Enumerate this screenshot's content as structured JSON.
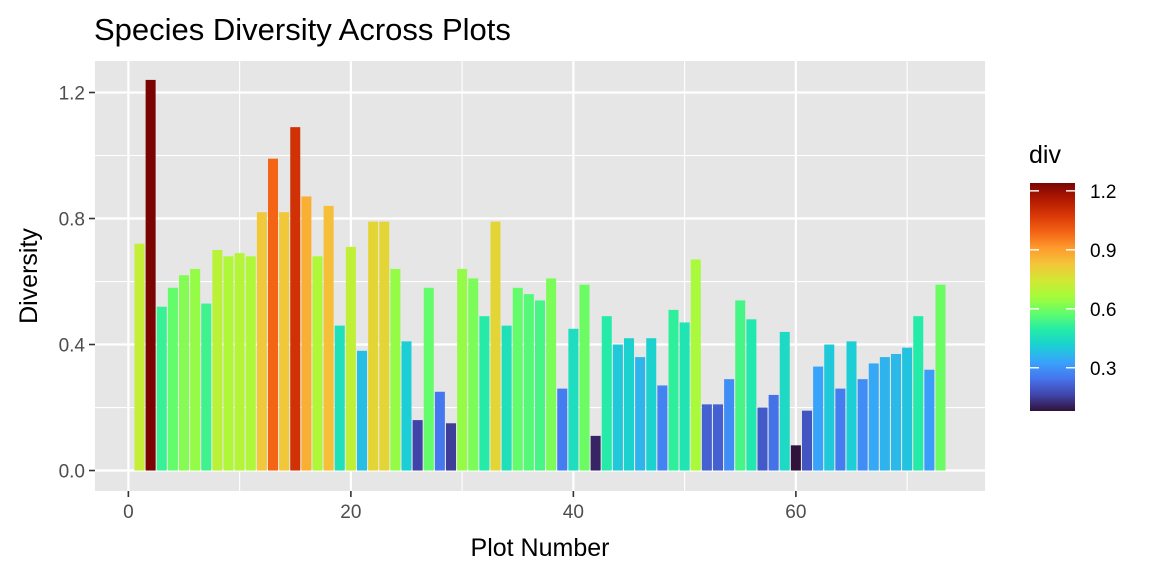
{
  "chart_data": {
    "type": "bar",
    "title": "Species Diversity Across Plots",
    "xlabel": "Plot Number",
    "ylabel": "Diversity",
    "xlim": [
      -3,
      77
    ],
    "ylim": [
      -0.065,
      1.3
    ],
    "x_ticks": [
      0,
      20,
      40,
      60
    ],
    "y_ticks": [
      0.0,
      0.4,
      0.8,
      1.2
    ],
    "y_tick_labels": [
      "0.0",
      "0.4",
      "0.8",
      "1.2"
    ],
    "grid": true,
    "legend": {
      "title": "div",
      "placement": "right",
      "range": [
        0.08,
        1.24
      ],
      "ticks": [
        0.3,
        0.6,
        0.9,
        1.2
      ],
      "tick_labels": [
        "0.3",
        "0.6",
        "0.9",
        "1.2"
      ]
    },
    "colors": {
      "panel_background": "#e6e6e6",
      "grid": "#ffffff",
      "palette": [
        "#30123b",
        "#4145ab",
        "#4675ed",
        "#39a2fc",
        "#1bcfd4",
        "#24eca6",
        "#61fc6c",
        "#a4fc3b",
        "#d1e834",
        "#f3c63a",
        "#fe9b2d",
        "#f36315",
        "#d93806",
        "#b11901",
        "#7a0402"
      ]
    },
    "x": [
      1,
      2,
      3,
      4,
      5,
      6,
      7,
      8,
      9,
      10,
      11,
      12,
      13,
      14,
      15,
      16,
      17,
      18,
      19,
      20,
      21,
      22,
      23,
      24,
      25,
      26,
      27,
      28,
      29,
      30,
      31,
      32,
      33,
      34,
      35,
      36,
      37,
      38,
      39,
      40,
      41,
      42,
      43,
      44,
      45,
      46,
      47,
      48,
      49,
      50,
      51,
      52,
      53,
      54,
      55,
      56,
      57,
      58,
      59,
      60,
      61,
      62,
      63,
      64,
      65,
      66,
      67,
      68,
      69,
      70,
      71,
      72,
      73
    ],
    "values": [
      0.72,
      1.24,
      0.52,
      0.58,
      0.62,
      0.64,
      0.53,
      0.7,
      0.68,
      0.69,
      0.68,
      0.82,
      0.99,
      0.82,
      1.09,
      0.87,
      0.68,
      0.84,
      0.46,
      0.71,
      0.38,
      0.79,
      0.79,
      0.64,
      0.41,
      0.16,
      0.58,
      0.25,
      0.15,
      0.64,
      0.61,
      0.49,
      0.79,
      0.46,
      0.58,
      0.56,
      0.54,
      0.61,
      0.26,
      0.45,
      0.59,
      0.11,
      0.49,
      0.4,
      0.42,
      0.36,
      0.42,
      0.27,
      0.51,
      0.47,
      0.67,
      0.21,
      0.21,
      0.29,
      0.54,
      0.48,
      0.2,
      0.24,
      0.44,
      0.08,
      0.19,
      0.33,
      0.4,
      0.26,
      0.41,
      0.29,
      0.34,
      0.36,
      0.37,
      0.39,
      0.49,
      0.32,
      0.59
    ]
  }
}
